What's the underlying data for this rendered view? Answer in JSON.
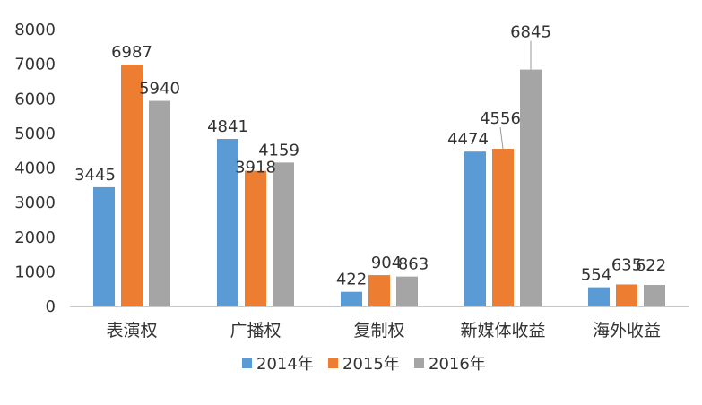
{
  "chart_data": {
    "type": "bar",
    "title": "",
    "xlabel": "",
    "ylabel": "",
    "categories": [
      "表演权",
      "广播权",
      "复制权",
      "新媒体收益",
      "海外收益"
    ],
    "series": [
      {
        "name": "2014年",
        "values": [
          3445,
          4841,
          422,
          4474,
          554
        ],
        "color": "#5b9bd5"
      },
      {
        "name": "2015年",
        "values": [
          6987,
          3918,
          904,
          4556,
          635
        ],
        "color": "#ed7d31"
      },
      {
        "name": "2016年",
        "values": [
          5940,
          4159,
          863,
          6845,
          622
        ],
        "color": "#a5a5a5"
      }
    ],
    "ylim": [
      0,
      8000
    ],
    "yticks": [
      0,
      1000,
      2000,
      3000,
      4000,
      5000,
      6000,
      7000,
      8000
    ],
    "grid": false,
    "legend": "bottom"
  }
}
